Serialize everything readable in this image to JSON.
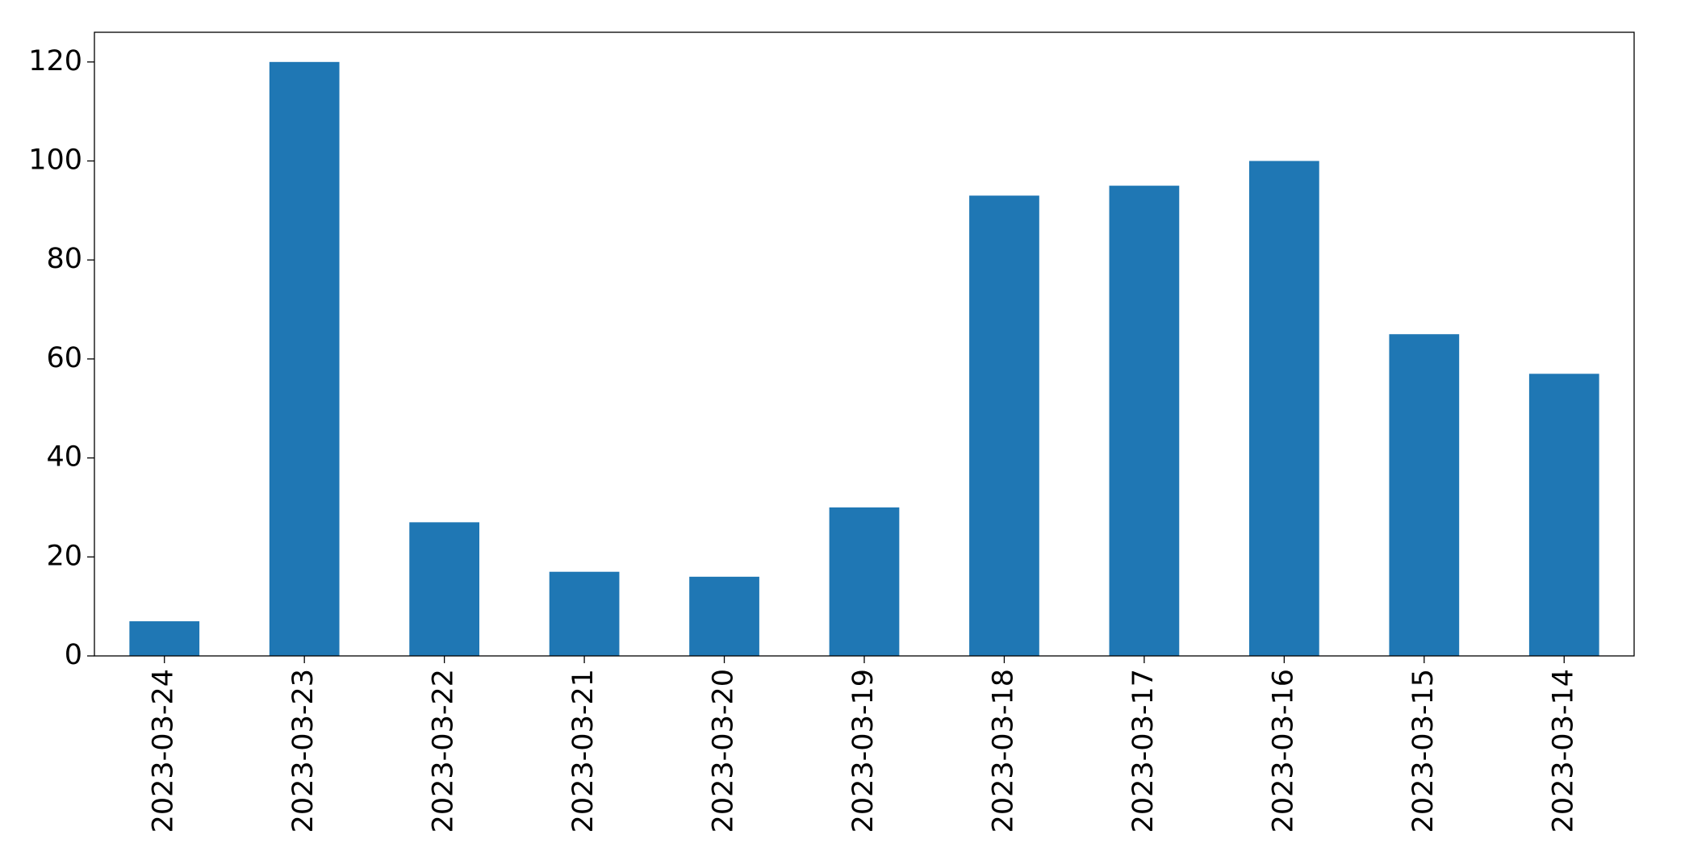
{
  "chart_data": {
    "type": "bar",
    "categories": [
      "2023-03-24",
      "2023-03-23",
      "2023-03-22",
      "2023-03-21",
      "2023-03-20",
      "2023-03-19",
      "2023-03-18",
      "2023-03-17",
      "2023-03-16",
      "2023-03-15",
      "2023-03-14"
    ],
    "values": [
      7,
      120,
      27,
      17,
      16,
      30,
      93,
      95,
      100,
      65,
      57
    ],
    "color": "#1f77b4",
    "ylim": [
      0,
      126
    ],
    "yticks": [
      0,
      20,
      40,
      60,
      80,
      100,
      120
    ],
    "grid": false
  }
}
